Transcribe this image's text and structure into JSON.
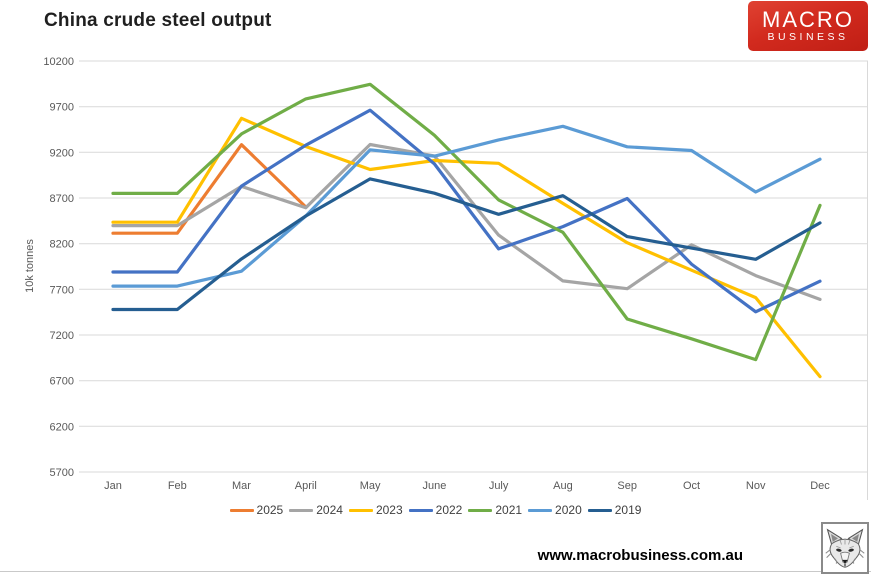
{
  "page": {
    "title": "China crude steel output"
  },
  "logo": {
    "line1": "MACRO",
    "line2": "BUSINESS",
    "bg_color": "#d22a1e"
  },
  "footer": {
    "url": "www.macrobusiness.com.au"
  },
  "chart_data": {
    "type": "line",
    "title": "China crude steel output",
    "xlabel": "",
    "ylabel": "10k tonnes",
    "ylim": [
      5700,
      10200
    ],
    "yticks": [
      10200,
      9700,
      9200,
      8700,
      8200,
      7700,
      7200,
      6700,
      6200,
      5700
    ],
    "grid": true,
    "legend_position": "bottom",
    "gridline_color": "#d9d9d9",
    "categories": [
      "Jan",
      "Feb",
      "Mar",
      "April",
      "May",
      "June",
      "July",
      "Aug",
      "Sep",
      "Oct",
      "Nov",
      "Dec"
    ],
    "series": [
      {
        "name": "2025",
        "color": "#ED7D31",
        "values": [
          8315,
          8315,
          9284,
          8602,
          null,
          null,
          null,
          null,
          null,
          null,
          null,
          null
        ]
      },
      {
        "name": "2024",
        "color": "#A5A5A5",
        "values": [
          8398,
          8398,
          8827,
          8594,
          9286,
          9161,
          8294,
          7792,
          7707,
          8188,
          7850,
          7590
        ]
      },
      {
        "name": "2023",
        "color": "#FFC000",
        "values": [
          8435,
          8435,
          9573,
          9264,
          9012,
          9111,
          9080,
          8641,
          8211,
          7909,
          7610,
          6744
        ]
      },
      {
        "name": "2022",
        "color": "#4472C4",
        "values": [
          7890,
          7890,
          8830,
          9278,
          9661,
          9073,
          8143,
          8387,
          8695,
          7976,
          7454,
          7789
        ]
      },
      {
        "name": "2021",
        "color": "#70AD47",
        "values": [
          8750,
          8750,
          9402,
          9785,
          9945,
          9388,
          8679,
          8324,
          7375,
          7158,
          6931,
          8619
        ]
      },
      {
        "name": "2020",
        "color": "#5B9BD5",
        "values": [
          7735,
          7735,
          7898,
          8503,
          9227,
          9158,
          9336,
          9485,
          9261,
          9220,
          8766,
          9125
        ]
      },
      {
        "name": "2019",
        "color": "#255E91",
        "values": [
          7479,
          7479,
          8033,
          8503,
          8909,
          8753,
          8522,
          8725,
          8277,
          8152,
          8029,
          8427
        ]
      }
    ]
  }
}
